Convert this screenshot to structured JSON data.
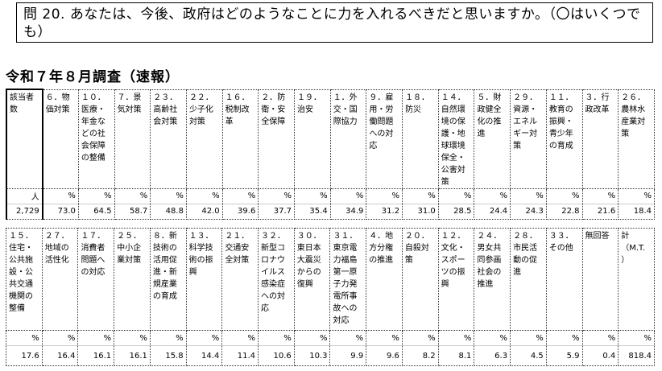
{
  "question": "問 20.  あなたは、今後、政府はどのようなことに力を入れるべきだと思いますか。（〇はいくつでも）",
  "survey_label": "令和７年８月調査（速報）",
  "table1": {
    "headers": [
      "該当者\n数",
      "６．物\n価対策",
      "１０．\n医療・\n年金な\nどの社\n会保障\nの整備",
      "７．景\n気対策",
      "２３．\n高齢社\n会対策",
      "２２．\n少子化\n対策",
      "１６．\n税制改\n革",
      "２．防\n衛・安\n全保障",
      "１９．\n治安",
      "１．外\n交・国\n際協力",
      "９．雇\n用・労\n働問題\nへの対\n応",
      "１８．\n防災",
      "１４．\n自然環\n境の保\n護・地\n球環境\n保全・\n公害対\n策",
      "５．財\n政健全\n化の推\n進",
      "２９．\n資源・\nエネル\nギー対\n策",
      "１１．\n教育の\n振興・\n青少年\nの育成",
      "３．行\n政改革",
      "２６．\n農林水\n産業対\n策"
    ],
    "units": [
      "人",
      "%",
      "%",
      "%",
      "%",
      "%",
      "%",
      "%",
      "%",
      "%",
      "%",
      "%",
      "%",
      "%",
      "%",
      "%",
      "%",
      "%"
    ],
    "values": [
      "2,729",
      "73.0",
      "64.5",
      "58.7",
      "48.8",
      "42.0",
      "39.6",
      "37.7",
      "35.4",
      "34.9",
      "31.2",
      "31.0",
      "28.5",
      "24.4",
      "24.3",
      "22.8",
      "21.6",
      "18.4"
    ]
  },
  "table2": {
    "headers": [
      "１５．\n住宅・\n公共施\n設・公\n共交通\n機関の\n整備",
      "２７．\n地域の\n活性化",
      "１７．\n消費者\n問題へ\nの対応",
      "２５．\n中小企\n業対策",
      "８．新\n技術の\n活用促\n進・新\n規産業\nの育成",
      "１３．\n科学技\n術の振\n興",
      "２１．\n交通安\n全対策",
      "３２．\n新型コ\nロナウ\nイルス\n感染症\nへの対\n応",
      "３０．\n東日本\n大震災\nからの\n復興",
      "３１．\n東京電\n力福島\n第一原\n子力発\n電所事\n故への\n対応",
      "４．地\n方分権\nの推進",
      "２０．\n自殺対\n策",
      "１２．\n文化・\nスポー\nツの振\n興",
      "２４．\n男女共\n同参画\n社会の\n推進",
      "２８．\n市民活\n動の促\n進",
      "３３．\nその他",
      "無回答",
      "計\n（M.T.\n）"
    ],
    "units": [
      "%",
      "%",
      "%",
      "%",
      "%",
      "%",
      "%",
      "%",
      "%",
      "%",
      "%",
      "%",
      "%",
      "%",
      "%",
      "%",
      "%",
      "%"
    ],
    "values": [
      "17.6",
      "16.4",
      "16.1",
      "16.1",
      "15.8",
      "14.4",
      "11.4",
      "10.6",
      "10.3",
      "9.9",
      "9.6",
      "8.2",
      "8.1",
      "6.3",
      "4.5",
      "5.9",
      "0.4",
      "818.4"
    ]
  }
}
